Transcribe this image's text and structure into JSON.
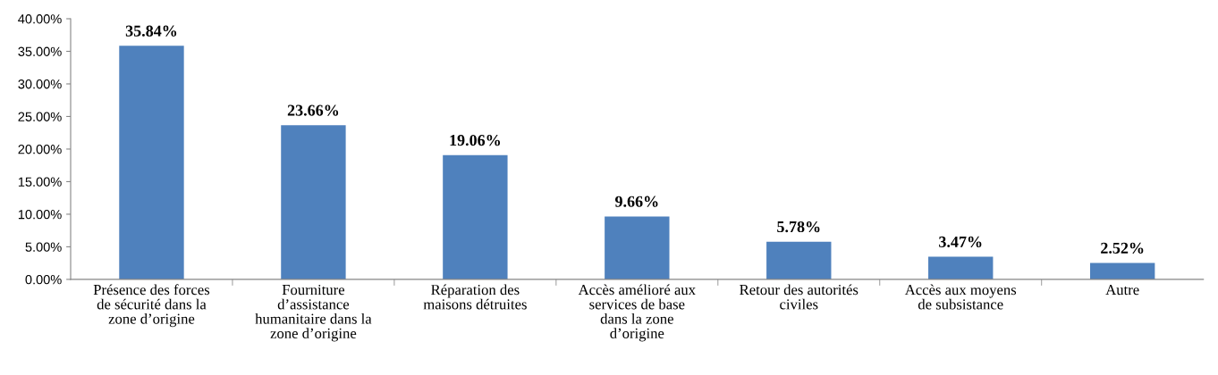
{
  "chart_data": {
    "type": "bar",
    "categories": [
      "Présence des forces\nde sécurité dans la\nzone d’origine",
      "Fourniture\nd’assistance\nhumanitaire dans la\nzone d’origine",
      "Réparation des\nmaisons détruites",
      "Accès amélioré aux\nservices de base\ndans la zone\nd’origine",
      "Retour des autorités\nciviles",
      "Accès aux moyens\nde subsistance",
      "Autre"
    ],
    "values": [
      35.84,
      23.66,
      19.06,
      9.66,
      5.78,
      3.47,
      2.52
    ],
    "value_labels": [
      "35.84%",
      "23.66%",
      "19.06%",
      "9.66%",
      "5.78%",
      "3.47%",
      "2.52%"
    ],
    "color": "#4f81bd",
    "ylim": [
      0,
      40
    ],
    "yticks": [
      {
        "value": 0,
        "label": "0.00%"
      },
      {
        "value": 5,
        "label": "5.00%"
      },
      {
        "value": 10,
        "label": "10.00%"
      },
      {
        "value": 15,
        "label": "15.00%"
      },
      {
        "value": 20,
        "label": "20.00%"
      },
      {
        "value": 25,
        "label": "25.00%"
      },
      {
        "value": 30,
        "label": "30.00%"
      },
      {
        "value": 35,
        "label": "35.00%"
      },
      {
        "value": 40,
        "label": "40.00%"
      }
    ],
    "grid": false,
    "legend": false
  }
}
